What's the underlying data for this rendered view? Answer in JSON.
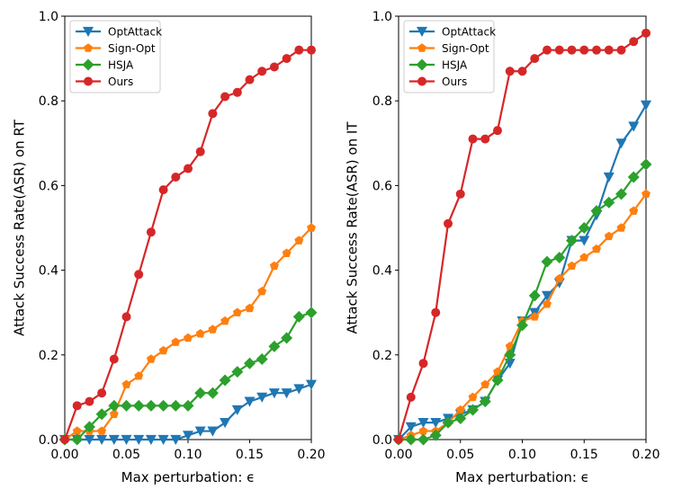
{
  "chart_data": [
    {
      "type": "line",
      "xlabel": "Max perturbation: ϵ",
      "ylabel": "Attack Success Rate(ASR) on RT",
      "xlim": [
        0.0,
        0.2
      ],
      "ylim": [
        0.0,
        1.0
      ],
      "xticks": [
        "0.00",
        "0.05",
        "0.10",
        "0.15",
        "0.20"
      ],
      "yticks": [
        "0.0",
        "0.2",
        "0.4",
        "0.6",
        "0.8",
        "1.0"
      ],
      "legend_position": "top-left",
      "x": [
        0.0,
        0.01,
        0.02,
        0.03,
        0.04,
        0.05,
        0.06,
        0.07,
        0.08,
        0.09,
        0.1,
        0.11,
        0.12,
        0.13,
        0.14,
        0.15,
        0.16,
        0.17,
        0.18,
        0.19,
        0.2
      ],
      "series": [
        {
          "name": "OptAttack",
          "color": "#1f77b4",
          "marker": "triangle-down",
          "values": [
            0.0,
            0.0,
            0.0,
            0.0,
            0.0,
            0.0,
            0.0,
            0.0,
            0.0,
            0.0,
            0.01,
            0.02,
            0.02,
            0.04,
            0.07,
            0.09,
            0.1,
            0.11,
            0.11,
            0.12,
            0.13
          ]
        },
        {
          "name": "Sign-Opt",
          "color": "#ff7f0e",
          "marker": "pentagon",
          "values": [
            0.0,
            0.02,
            0.02,
            0.02,
            0.06,
            0.13,
            0.15,
            0.19,
            0.21,
            0.23,
            0.24,
            0.25,
            0.26,
            0.28,
            0.3,
            0.31,
            0.35,
            0.41,
            0.44,
            0.47,
            0.5
          ]
        },
        {
          "name": "HSJA",
          "color": "#2ca02c",
          "marker": "diamond",
          "values": [
            0.0,
            0.0,
            0.03,
            0.06,
            0.08,
            0.08,
            0.08,
            0.08,
            0.08,
            0.08,
            0.08,
            0.11,
            0.11,
            0.14,
            0.16,
            0.18,
            0.19,
            0.22,
            0.24,
            0.29,
            0.3
          ]
        },
        {
          "name": "Ours",
          "color": "#d62728",
          "marker": "circle",
          "values": [
            0.0,
            0.08,
            0.09,
            0.11,
            0.19,
            0.29,
            0.39,
            0.49,
            0.59,
            0.62,
            0.64,
            0.68,
            0.77,
            0.81,
            0.82,
            0.85,
            0.87,
            0.88,
            0.9,
            0.92,
            0.92
          ]
        }
      ]
    },
    {
      "type": "line",
      "xlabel": "Max perturbation: ϵ",
      "ylabel": "Attack Success Rate(ASR) on IT",
      "xlim": [
        0.0,
        0.2
      ],
      "ylim": [
        0.0,
        1.0
      ],
      "xticks": [
        "0.00",
        "0.05",
        "0.10",
        "0.15",
        "0.20"
      ],
      "yticks": [
        "0.0",
        "0.2",
        "0.4",
        "0.6",
        "0.8",
        "1.0"
      ],
      "legend_position": "top-left",
      "x": [
        0.0,
        0.01,
        0.02,
        0.03,
        0.04,
        0.05,
        0.06,
        0.07,
        0.08,
        0.09,
        0.1,
        0.11,
        0.12,
        0.13,
        0.14,
        0.15,
        0.16,
        0.17,
        0.18,
        0.19,
        0.2
      ],
      "series": [
        {
          "name": "OptAttack",
          "color": "#1f77b4",
          "marker": "triangle-down",
          "values": [
            0.0,
            0.03,
            0.04,
            0.04,
            0.05,
            0.06,
            0.07,
            0.09,
            0.14,
            0.18,
            0.28,
            0.3,
            0.34,
            0.37,
            0.47,
            0.47,
            0.53,
            0.62,
            0.7,
            0.74,
            0.79
          ]
        },
        {
          "name": "Sign-Opt",
          "color": "#ff7f0e",
          "marker": "pentagon",
          "values": [
            0.0,
            0.01,
            0.02,
            0.02,
            0.04,
            0.07,
            0.1,
            0.13,
            0.16,
            0.22,
            0.28,
            0.29,
            0.32,
            0.38,
            0.41,
            0.43,
            0.45,
            0.48,
            0.5,
            0.54,
            0.58
          ]
        },
        {
          "name": "HSJA",
          "color": "#2ca02c",
          "marker": "diamond",
          "values": [
            0.0,
            0.0,
            0.0,
            0.01,
            0.04,
            0.05,
            0.07,
            0.09,
            0.14,
            0.2,
            0.27,
            0.34,
            0.42,
            0.43,
            0.47,
            0.5,
            0.54,
            0.56,
            0.58,
            0.62,
            0.65
          ]
        },
        {
          "name": "Ours",
          "color": "#d62728",
          "marker": "circle",
          "values": [
            0.0,
            0.1,
            0.18,
            0.3,
            0.51,
            0.58,
            0.71,
            0.71,
            0.73,
            0.87,
            0.87,
            0.9,
            0.92,
            0.92,
            0.92,
            0.92,
            0.92,
            0.92,
            0.92,
            0.94,
            0.96
          ]
        }
      ]
    }
  ]
}
